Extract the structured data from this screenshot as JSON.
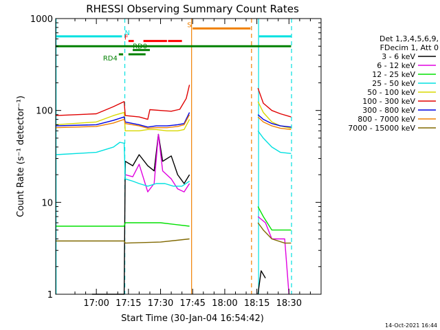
{
  "chart_data": {
    "type": "line",
    "title": "RHESSI Observing Summary Count Rates",
    "xlabel": "Start Time (30-Jan-04 16:54:42)",
    "ylabel": "Count Rate (s⁻¹ detector⁻¹)",
    "yscale": "log",
    "ylim": [
      1,
      1000
    ],
    "xlim_minutes": [
      -19,
      105
    ],
    "x_ticks": [
      {
        "label": "17:00",
        "minutes": 0
      },
      {
        "label": "17:15",
        "minutes": 15
      },
      {
        "label": "17:30",
        "minutes": 30
      },
      {
        "label": "17:45",
        "minutes": 45
      },
      {
        "label": "18:00",
        "minutes": 60
      },
      {
        "label": "18:15",
        "minutes": 75
      },
      {
        "label": "18:30",
        "minutes": 90
      }
    ],
    "y_ticks": [
      {
        "label": "1",
        "value": 1
      },
      {
        "label": "10",
        "value": 10
      },
      {
        "label": "100",
        "value": 100
      },
      {
        "label": "1000",
        "value": 1000
      }
    ],
    "legend": {
      "placement": "right",
      "header": [
        "Det 1,3,4,5,6,9,",
        "FDecim 1, Att 0"
      ]
    },
    "series": [
      {
        "name": "3 - 6 keV",
        "color": "#000000",
        "points": [
          [
            -2,
            1
          ],
          [
            13,
            1
          ],
          [
            13.5,
            28
          ],
          [
            17,
            25
          ],
          [
            20,
            33
          ],
          [
            24,
            25
          ],
          [
            27,
            22
          ],
          [
            29,
            55
          ],
          [
            31,
            28
          ],
          [
            35,
            32
          ],
          [
            38,
            20
          ],
          [
            41,
            16
          ],
          [
            43.5,
            20
          ]
        ]
      },
      {
        "name": "6 - 12 keV",
        "color": "#e000e0",
        "points": [
          [
            13.5,
            20
          ],
          [
            17,
            19
          ],
          [
            20,
            26
          ],
          [
            24,
            13
          ],
          [
            27,
            16
          ],
          [
            29,
            55
          ],
          [
            31,
            22
          ],
          [
            35,
            18
          ],
          [
            38,
            14
          ],
          [
            41,
            13
          ],
          [
            43.5,
            16
          ]
        ]
      },
      {
        "name": "12 - 25 keV",
        "color": "#00e000",
        "points": [
          [
            -19,
            5.5
          ],
          [
            13,
            5.5
          ],
          [
            13.5,
            6
          ],
          [
            30,
            6
          ],
          [
            43.5,
            5.5
          ]
        ]
      },
      {
        "name": "25 - 50 keV",
        "color": "#00e0e0",
        "points": [
          [
            -19,
            33
          ],
          [
            0,
            35
          ],
          [
            8,
            40
          ],
          [
            11,
            45
          ],
          [
            13,
            44
          ],
          [
            13.5,
            18
          ],
          [
            17,
            17
          ],
          [
            20,
            16
          ],
          [
            24,
            15
          ],
          [
            28,
            16
          ],
          [
            32,
            16
          ],
          [
            36,
            15
          ],
          [
            40,
            15
          ],
          [
            43.5,
            17
          ]
        ]
      },
      {
        "name": "50 - 100 keV",
        "color": "#d8d800",
        "points": [
          [
            -19,
            70
          ],
          [
            0,
            75
          ],
          [
            8,
            88
          ],
          [
            13,
            95
          ],
          [
            13.5,
            60
          ],
          [
            20,
            60
          ],
          [
            24,
            62
          ],
          [
            28,
            62
          ],
          [
            33,
            60
          ],
          [
            38,
            60
          ],
          [
            41,
            62
          ],
          [
            43.5,
            80
          ]
        ]
      },
      {
        "name": "100 - 300 keV",
        "color": "#e00000",
        "points": [
          [
            -19,
            88
          ],
          [
            0,
            92
          ],
          [
            8,
            110
          ],
          [
            13,
            125
          ],
          [
            13.5,
            88
          ],
          [
            20,
            85
          ],
          [
            24,
            80
          ],
          [
            25,
            102
          ],
          [
            30,
            100
          ],
          [
            35,
            98
          ],
          [
            39,
            103
          ],
          [
            42,
            135
          ],
          [
            43.5,
            190
          ]
        ]
      },
      {
        "name": "300 - 800 keV",
        "color": "#0000e0",
        "points": [
          [
            -19,
            68
          ],
          [
            0,
            70
          ],
          [
            8,
            78
          ],
          [
            13,
            85
          ],
          [
            13.5,
            75
          ],
          [
            20,
            70
          ],
          [
            24,
            66
          ],
          [
            28,
            68
          ],
          [
            33,
            68
          ],
          [
            38,
            70
          ],
          [
            41,
            72
          ],
          [
            43.5,
            95
          ]
        ]
      },
      {
        "name": "800 - 7000 keV",
        "color": "#f08000",
        "points": [
          [
            -19,
            65
          ],
          [
            0,
            67
          ],
          [
            8,
            73
          ],
          [
            13,
            80
          ],
          [
            13.5,
            72
          ],
          [
            20,
            68
          ],
          [
            24,
            64
          ],
          [
            28,
            65
          ],
          [
            33,
            65
          ],
          [
            38,
            67
          ],
          [
            41,
            70
          ],
          [
            43.5,
            90
          ]
        ]
      },
      {
        "name": "7000 - 15000 keV",
        "color": "#806800",
        "points": [
          [
            -19,
            3.8
          ],
          [
            13,
            3.8
          ],
          [
            13.5,
            3.6
          ],
          [
            30,
            3.7
          ],
          [
            43.5,
            4.0
          ]
        ]
      }
    ],
    "segment2": [
      {
        "name": "3 - 6 keV",
        "points": [
          [
            75.5,
            1
          ],
          [
            77,
            1.8
          ],
          [
            79,
            1.5
          ]
        ]
      },
      {
        "name": "6 - 12 keV",
        "points": [
          [
            75.5,
            7
          ],
          [
            79,
            6
          ],
          [
            82,
            4
          ],
          [
            88,
            4
          ],
          [
            90,
            1
          ]
        ]
      },
      {
        "name": "12 - 25 keV",
        "points": [
          [
            75.5,
            9
          ],
          [
            78,
            7
          ],
          [
            82,
            5
          ],
          [
            88,
            5
          ],
          [
            91,
            5
          ]
        ]
      },
      {
        "name": "25 - 50 keV",
        "points": [
          [
            75.5,
            60
          ],
          [
            78,
            50
          ],
          [
            82,
            40
          ],
          [
            86,
            35
          ],
          [
            91,
            34
          ]
        ]
      },
      {
        "name": "50 - 100 keV",
        "points": [
          [
            75.5,
            125
          ],
          [
            78,
            95
          ],
          [
            82,
            75
          ],
          [
            86,
            68
          ],
          [
            91,
            64
          ]
        ]
      },
      {
        "name": "100 - 300 keV",
        "points": [
          [
            75.5,
            175
          ],
          [
            78,
            120
          ],
          [
            82,
            100
          ],
          [
            86,
            92
          ],
          [
            91,
            85
          ]
        ]
      },
      {
        "name": "300 - 800 keV",
        "points": [
          [
            75.5,
            90
          ],
          [
            78,
            80
          ],
          [
            82,
            72
          ],
          [
            86,
            68
          ],
          [
            91,
            66
          ]
        ]
      },
      {
        "name": "800 - 7000 keV",
        "points": [
          [
            75.5,
            85
          ],
          [
            78,
            75
          ],
          [
            82,
            68
          ],
          [
            86,
            64
          ],
          [
            91,
            62
          ]
        ]
      },
      {
        "name": "7000 - 15000 keV",
        "points": [
          [
            75.5,
            6
          ],
          [
            78,
            5
          ],
          [
            82,
            4
          ],
          [
            88,
            3.6
          ],
          [
            91,
            3.6
          ]
        ]
      }
    ],
    "flag_bars": [
      {
        "label": "N",
        "color": "#00e0e0",
        "ranges": [
          [
            -19,
            12
          ],
          [
            76,
            91
          ]
        ],
        "level": 640
      },
      {
        "label": "",
        "color": "#008000",
        "ranges": [
          [
            -19,
            91
          ]
        ],
        "level": 500
      },
      {
        "label": "F",
        "color": "#ff0000",
        "ranges": [
          [
            15,
            17.5
          ],
          [
            22,
            33
          ],
          [
            33.5,
            40
          ]
        ],
        "level": 570
      },
      {
        "label": "RD0",
        "color": "#008000",
        "ranges": [
          [
            17,
            25
          ]
        ],
        "level": 455
      },
      {
        "label": "RD4",
        "color": "#008000",
        "ranges": [
          [
            10.5,
            12.5
          ],
          [
            15,
            23
          ]
        ],
        "level": 408
      },
      {
        "label": "S",
        "color": "#f08000",
        "ranges": [
          [
            45,
            72
          ]
        ],
        "level": 780
      }
    ],
    "vlines": [
      {
        "minutes": -18.8,
        "color": "#00e0e0",
        "dash": false
      },
      {
        "minutes": 13.3,
        "color": "#00e0e0",
        "dash": true
      },
      {
        "minutes": 44.5,
        "color": "#f08000",
        "dash": false
      },
      {
        "minutes": 72.5,
        "color": "#f08000",
        "dash": true
      },
      {
        "minutes": 75.8,
        "color": "#00e0e0",
        "dash": false
      },
      {
        "minutes": 91.2,
        "color": "#00e0e0",
        "dash": true
      }
    ]
  },
  "footer": {
    "date_stamp": "14-Oct-2021 16:44"
  }
}
